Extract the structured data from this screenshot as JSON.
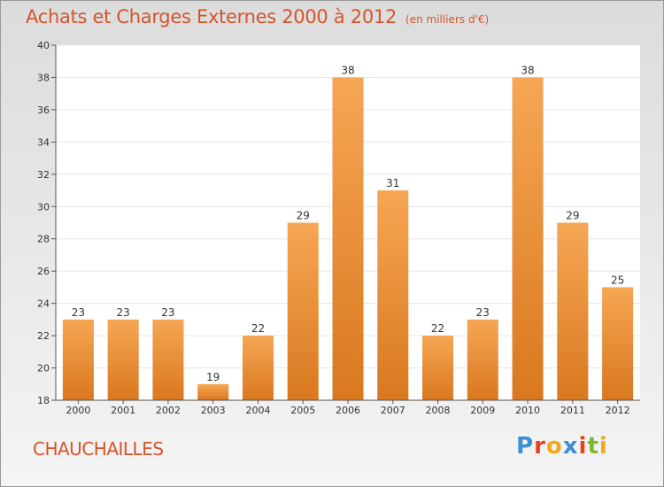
{
  "header": {
    "title": "Achats et Charges Externes 2000 à 2012",
    "subtitle": "(en milliers d'€)"
  },
  "footer": {
    "commune": "CHAUCHAILLES",
    "logo_letters": [
      "P",
      "r",
      "o",
      "x",
      "i",
      "t",
      "i"
    ],
    "logo_colors": [
      "#3a8fd8",
      "#e8431f",
      "#f2a81d",
      "#3a8fd8",
      "#e8431f",
      "#7cb82f",
      "#f2a81d"
    ]
  },
  "colors": {
    "bar_top": "#f6a654",
    "bar_bottom": "#d9781f",
    "accent": "#d4552a",
    "grid": "#e6e6e6"
  },
  "chart_data": {
    "type": "bar",
    "categories": [
      "2000",
      "2001",
      "2002",
      "2003",
      "2004",
      "2005",
      "2006",
      "2007",
      "2008",
      "2009",
      "2010",
      "2011",
      "2012"
    ],
    "values": [
      23,
      23,
      23,
      19,
      22,
      29,
      38,
      31,
      22,
      23,
      38,
      29,
      25
    ],
    "title": "Achats et Charges Externes 2000 à 2012",
    "xlabel": "",
    "ylabel": "",
    "ylim": [
      18,
      40
    ],
    "yticks": [
      18,
      20,
      22,
      24,
      26,
      28,
      30,
      32,
      34,
      36,
      38,
      40
    ],
    "grid": true
  }
}
